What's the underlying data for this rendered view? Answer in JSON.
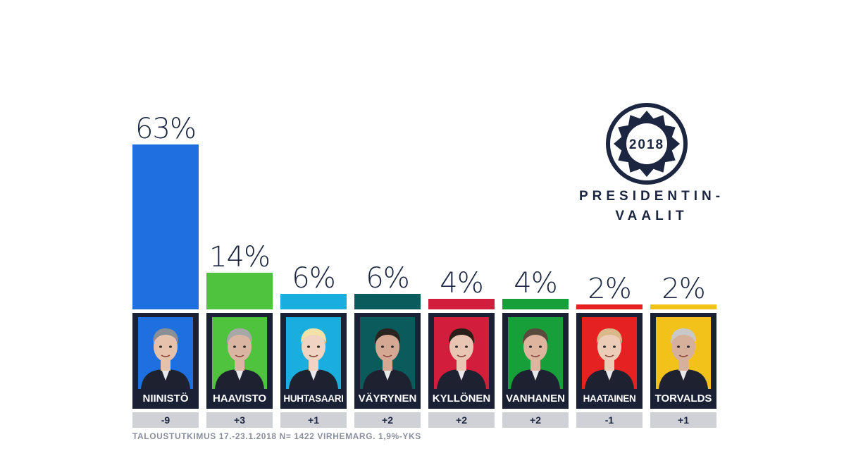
{
  "chart_data": {
    "type": "bar",
    "categories": [
      "NIINISTÖ",
      "HAAVISTO",
      "HUHTASAARI",
      "VÄYRYNEN",
      "KYLLÖNEN",
      "VANHANEN",
      "HAATAINEN",
      "TORVALDS"
    ],
    "values": [
      63,
      14,
      6,
      6,
      4,
      4,
      2,
      2
    ],
    "value_labels": [
      "63%",
      "14%",
      "6%",
      "6%",
      "4%",
      "4%",
      "2%",
      "2%"
    ],
    "changes": [
      "-9",
      "+3",
      "+1",
      "+2",
      "+2",
      "+2",
      "-1",
      "+1"
    ],
    "colors": [
      "#1e6fe0",
      "#4fc23e",
      "#1aaede",
      "#0a5c5c",
      "#d21e3c",
      "#17a03a",
      "#e52121",
      "#f2c21b"
    ],
    "ylim": [
      0,
      63
    ],
    "grid": false,
    "title": "",
    "xlabel": "",
    "ylabel": ""
  },
  "source_note": "TALOUSTUTKIMUS 17.-23.1.2018 N= 1422 VIRHEMARG. 1,9%-YKS",
  "logo": {
    "year": "2018",
    "line1": "PRESIDENTIN-",
    "line2": "VAALIT",
    "color": "#1c2641"
  },
  "icons": [
    "candidate-portrait"
  ]
}
